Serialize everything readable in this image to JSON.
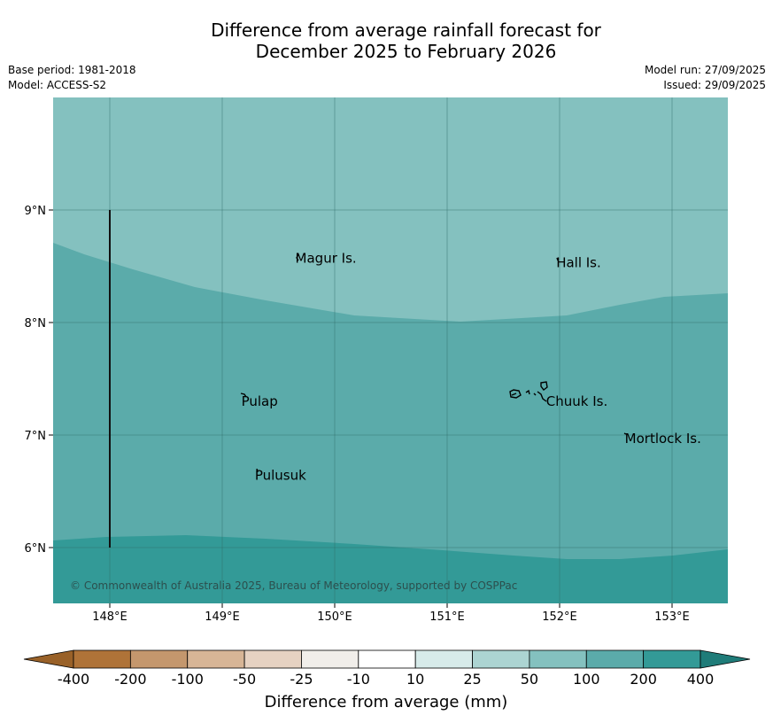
{
  "title": {
    "line1": "Difference from average rainfall forecast for",
    "line2": "December 2025 to February 2026"
  },
  "meta": {
    "base_period": "Base period: 1981-2018",
    "model": "Model: ACCESS-S2",
    "model_run": "Model run: 27/09/2025",
    "issued": "Issued: 29/09/2025"
  },
  "map": {
    "lon_ticks": [
      {
        "value": 148,
        "label": "148°E"
      },
      {
        "value": 149,
        "label": "149°E"
      },
      {
        "value": 150,
        "label": "150°E"
      },
      {
        "value": 151,
        "label": "151°E"
      },
      {
        "value": 152,
        "label": "152°E"
      },
      {
        "value": 153,
        "label": "153°E"
      }
    ],
    "lat_ticks": [
      {
        "value": 9,
        "label": "9°N"
      },
      {
        "value": 8,
        "label": "8°N"
      },
      {
        "value": 7,
        "label": "7°N"
      },
      {
        "value": 6,
        "label": "6°N"
      }
    ],
    "places": [
      {
        "name": "Magur Is.",
        "lon": 149.65,
        "lat": 8.57
      },
      {
        "name": "Hall Is.",
        "lon": 151.97,
        "lat": 8.53
      },
      {
        "name": "Pulap",
        "lon": 149.17,
        "lat": 7.3
      },
      {
        "name": "Chuuk Is.",
        "lon": 151.88,
        "lat": 7.3
      },
      {
        "name": "Mortlock Is.",
        "lon": 152.58,
        "lat": 6.97
      },
      {
        "name": "Pulusuk",
        "lon": 149.29,
        "lat": 6.64
      }
    ],
    "copyright": "© Commonwealth of Australia 2025, Bureau of Meteorology, supported by COSPPac",
    "zones": [
      {
        "category": "50 to 100",
        "color": "#84c1bf"
      },
      {
        "category": "100 to 200",
        "color": "#5babaa"
      },
      {
        "category": "200 to 400",
        "color": "#339a97"
      }
    ]
  },
  "legend": {
    "title": "Difference from average (mm)",
    "labels": [
      "-400",
      "-200",
      "-100",
      "-50",
      "-25",
      "-10",
      "10",
      "25",
      "50",
      "100",
      "200",
      "400"
    ],
    "colors": [
      "#af7338",
      "#c4976d",
      "#d7b596",
      "#e6d2c2",
      "#f1eeea",
      "#ffffff",
      "#d7ebea",
      "#acd4d2",
      "#84c1bf",
      "#5babaa",
      "#339a97"
    ],
    "under_color": "#996128",
    "over_color": "#1f7c79"
  }
}
